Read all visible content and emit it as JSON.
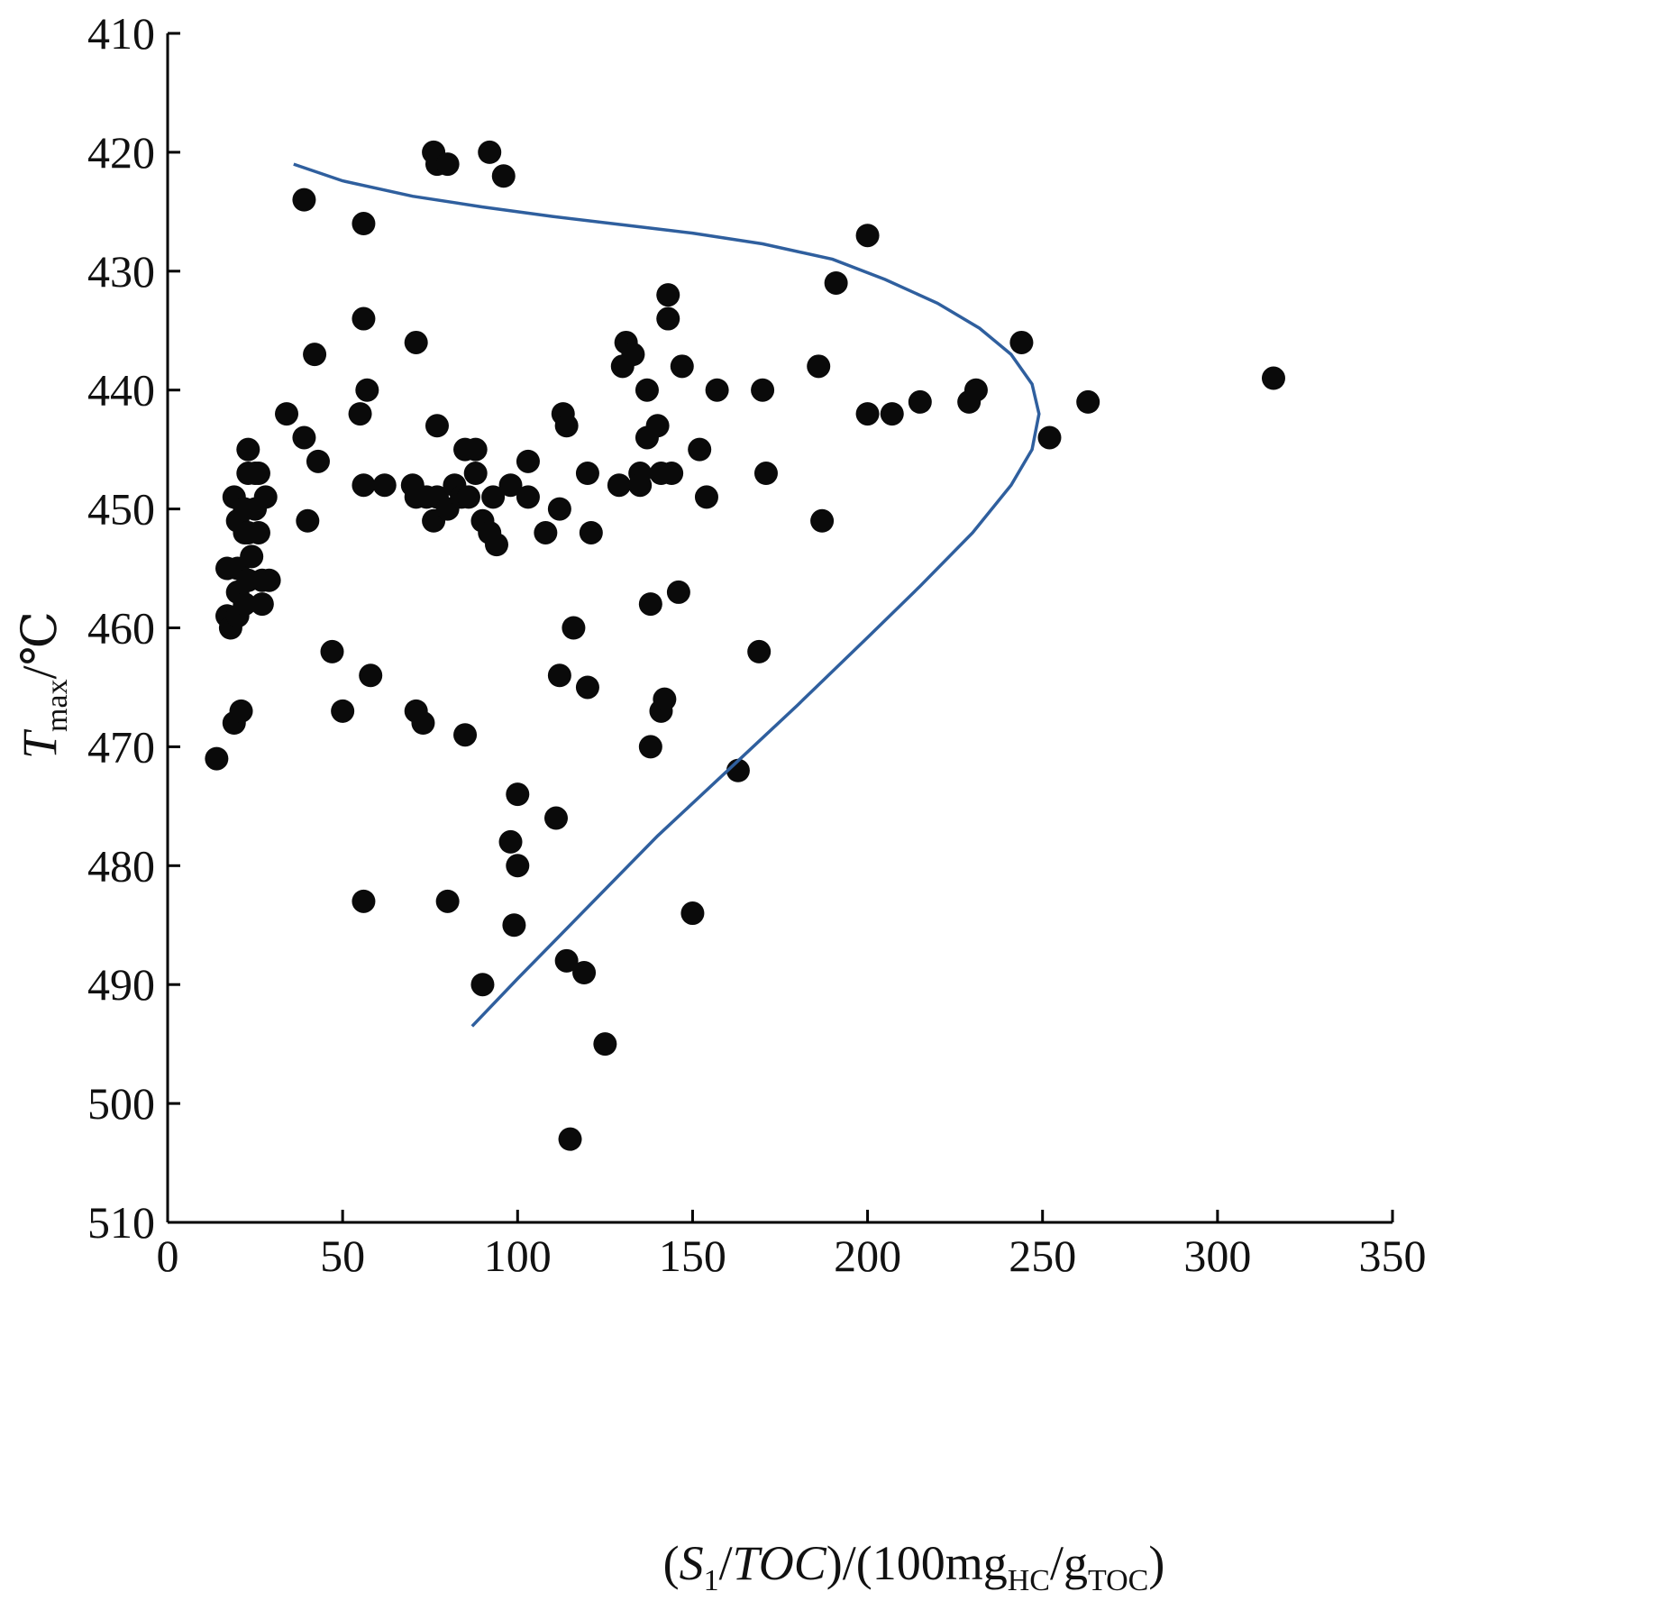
{
  "chart_data": {
    "type": "scatter",
    "xlabel": {
      "pre": "(",
      "S": "S",
      "sub1": "1",
      "mid": "/",
      "TOC": "TOC",
      "post": ")/(100mg",
      "subHC": "HC",
      "slash": "/g",
      "subTOC": "TOC",
      "end": ")"
    },
    "ylabel": {
      "T": "T",
      "sub": "max",
      "unit": "/℃"
    },
    "xlim": [
      0,
      350
    ],
    "ylim": [
      510,
      410
    ],
    "y_inverted": true,
    "x_ticks": [
      0,
      50,
      100,
      150,
      200,
      250,
      300,
      350
    ],
    "y_ticks": [
      410,
      420,
      430,
      440,
      450,
      460,
      470,
      480,
      490,
      500,
      510
    ],
    "grid": false,
    "colors": {
      "points": "#0a0a0a",
      "trend": "#2f5f9e"
    },
    "points": [
      [
        14,
        471
      ],
      [
        17,
        455
      ],
      [
        17,
        459
      ],
      [
        18,
        460
      ],
      [
        19,
        449
      ],
      [
        19,
        468
      ],
      [
        20,
        451
      ],
      [
        20,
        455
      ],
      [
        20,
        457
      ],
      [
        20,
        459
      ],
      [
        21,
        467
      ],
      [
        22,
        450
      ],
      [
        22,
        452
      ],
      [
        22,
        458
      ],
      [
        23,
        445
      ],
      [
        23,
        447
      ],
      [
        23,
        452
      ],
      [
        23,
        456
      ],
      [
        24,
        454
      ],
      [
        25,
        447
      ],
      [
        25,
        450
      ],
      [
        26,
        447
      ],
      [
        26,
        452
      ],
      [
        27,
        456
      ],
      [
        27,
        458
      ],
      [
        28,
        449
      ],
      [
        29,
        456
      ],
      [
        34,
        442
      ],
      [
        39,
        444
      ],
      [
        39,
        424
      ],
      [
        40,
        451
      ],
      [
        42,
        437
      ],
      [
        43,
        446
      ],
      [
        47,
        462
      ],
      [
        50,
        467
      ],
      [
        55,
        442
      ],
      [
        56,
        434
      ],
      [
        56,
        426
      ],
      [
        56,
        448
      ],
      [
        56,
        483
      ],
      [
        57,
        440
      ],
      [
        58,
        464
      ],
      [
        62,
        448
      ],
      [
        70,
        448
      ],
      [
        71,
        449
      ],
      [
        71,
        436
      ],
      [
        71,
        467
      ],
      [
        73,
        468
      ],
      [
        74,
        449
      ],
      [
        76,
        451
      ],
      [
        76,
        420
      ],
      [
        77,
        449
      ],
      [
        77,
        421
      ],
      [
        77,
        443
      ],
      [
        80,
        421
      ],
      [
        80,
        450
      ],
      [
        80,
        483
      ],
      [
        82,
        448
      ],
      [
        84,
        449
      ],
      [
        85,
        445
      ],
      [
        85,
        469
      ],
      [
        86,
        449
      ],
      [
        88,
        445
      ],
      [
        88,
        447
      ],
      [
        90,
        451
      ],
      [
        90,
        490
      ],
      [
        92,
        420
      ],
      [
        92,
        452
      ],
      [
        93,
        449
      ],
      [
        94,
        453
      ],
      [
        96,
        422
      ],
      [
        98,
        448
      ],
      [
        98,
        478
      ],
      [
        99,
        485
      ],
      [
        100,
        480
      ],
      [
        100,
        474
      ],
      [
        103,
        446
      ],
      [
        103,
        449
      ],
      [
        108,
        452
      ],
      [
        111,
        476
      ],
      [
        112,
        450
      ],
      [
        112,
        464
      ],
      [
        113,
        442
      ],
      [
        114,
        443
      ],
      [
        114,
        488
      ],
      [
        116,
        460
      ],
      [
        119,
        489
      ],
      [
        120,
        447
      ],
      [
        120,
        465
      ],
      [
        121,
        452
      ],
      [
        125,
        495
      ],
      [
        115,
        503
      ],
      [
        129,
        448
      ],
      [
        130,
        438
      ],
      [
        131,
        436
      ],
      [
        133,
        437
      ],
      [
        135,
        447
      ],
      [
        135,
        448
      ],
      [
        137,
        440
      ],
      [
        137,
        444
      ],
      [
        138,
        458
      ],
      [
        138,
        470
      ],
      [
        140,
        443
      ],
      [
        141,
        447
      ],
      [
        141,
        467
      ],
      [
        142,
        466
      ],
      [
        143,
        434
      ],
      [
        143,
        432
      ],
      [
        144,
        447
      ],
      [
        146,
        457
      ],
      [
        147,
        438
      ],
      [
        150,
        484
      ],
      [
        152,
        445
      ],
      [
        154,
        449
      ],
      [
        157,
        440
      ],
      [
        163,
        472
      ],
      [
        169,
        462
      ],
      [
        170,
        440
      ],
      [
        171,
        447
      ],
      [
        186,
        438
      ],
      [
        187,
        451
      ],
      [
        191,
        431
      ],
      [
        200,
        427
      ],
      [
        200,
        442
      ],
      [
        207,
        442
      ],
      [
        215,
        441
      ],
      [
        229,
        441
      ],
      [
        231,
        440
      ],
      [
        244,
        436
      ],
      [
        252,
        444
      ],
      [
        263,
        441
      ],
      [
        316,
        439
      ]
    ],
    "trend_curve": [
      [
        36,
        421
      ],
      [
        50,
        422.4
      ],
      [
        70,
        423.7
      ],
      [
        90,
        424.6
      ],
      [
        110,
        425.4
      ],
      [
        130,
        426.1
      ],
      [
        150,
        426.8
      ],
      [
        170,
        427.7
      ],
      [
        190,
        429
      ],
      [
        205,
        430.7
      ],
      [
        220,
        432.7
      ],
      [
        232,
        434.8
      ],
      [
        241,
        437
      ],
      [
        247,
        439.5
      ],
      [
        249,
        442
      ],
      [
        247,
        445
      ],
      [
        241,
        448
      ],
      [
        230,
        452
      ],
      [
        215,
        456.5
      ],
      [
        200,
        460.8
      ],
      [
        180,
        466.5
      ],
      [
        160,
        472
      ],
      [
        140,
        477.5
      ],
      [
        120,
        483.5
      ],
      [
        100,
        489.5
      ],
      [
        87,
        493.5
      ]
    ]
  }
}
